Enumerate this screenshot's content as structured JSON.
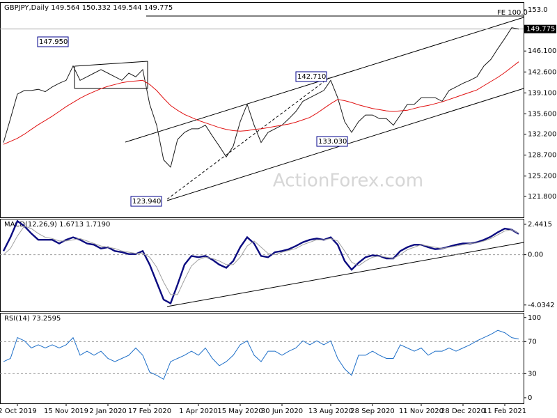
{
  "chart_data": [
    {
      "type": "line",
      "title": "GBPJPY,Daily",
      "ohlc": [
        149.564,
        150.332,
        149.544,
        149.775
      ],
      "ylim": [
        118.3,
        154.16
      ],
      "yticks": [
        {
          "value": 153,
          "label": "153.0"
        },
        {
          "value": 146.1,
          "label": "146.100"
        },
        {
          "value": 142.6,
          "label": "142.600"
        },
        {
          "value": 139.1,
          "label": "139.100"
        },
        {
          "value": 135.6,
          "label": "135.600"
        },
        {
          "value": 132.2,
          "label": "132.200"
        },
        {
          "value": 128.7,
          "label": "128.700"
        },
        {
          "value": 125.2,
          "label": "125.200"
        },
        {
          "value": 121.8,
          "label": "121.800"
        }
      ],
      "last_price": 149.775,
      "annotations": [
        "147.950",
        "142.710",
        "133.030",
        "123.940",
        "FE 100.0"
      ],
      "watermark": "ActionForex.com",
      "series": [
        {
          "color": "#1a1a1a",
          "values": [
            130.8,
            134.8,
            138.9,
            139.5,
            139.5,
            139.7,
            139.3,
            140.1,
            140.7,
            141.2,
            143.6,
            141.2,
            141.8,
            142.4,
            143.0,
            142.4,
            141.8,
            141.2,
            142.4,
            141.8,
            143.0,
            137.2,
            133.7,
            127.9,
            126.7,
            131.3,
            132.5,
            133.1,
            133.1,
            133.7,
            131.9,
            130.2,
            128.4,
            130.2,
            134.3,
            137.2,
            133.7,
            130.8,
            132.5,
            133.1,
            133.7,
            134.8,
            136.0,
            137.7,
            138.3,
            138.9,
            139.5,
            141.2,
            138.3,
            134.3,
            132.5,
            134.3,
            135.4,
            135.4,
            134.8,
            134.8,
            133.7,
            135.4,
            137.2,
            137.2,
            138.3,
            138.3,
            138.3,
            137.7,
            139.5,
            140.1,
            140.7,
            141.2,
            141.8,
            143.6,
            144.7,
            146.5,
            148.2,
            150.0,
            149.775
          ]
        },
        {
          "color": "#e01010",
          "values": [
            130.5,
            131.0,
            131.5,
            132.2,
            133.0,
            133.8,
            134.5,
            135.2,
            136.0,
            136.8,
            137.5,
            138.2,
            138.8,
            139.3,
            139.8,
            140.2,
            140.5,
            140.8,
            141.0,
            141.1,
            141.2,
            140.5,
            139.5,
            138.2,
            137.0,
            136.2,
            135.5,
            135.0,
            134.5,
            134.1,
            133.7,
            133.3,
            133.0,
            132.8,
            132.7,
            132.8,
            133.0,
            133.1,
            133.3,
            133.5,
            133.7,
            133.9,
            134.2,
            134.6,
            135.0,
            135.7,
            136.5,
            137.3,
            138.0,
            137.8,
            137.5,
            137.1,
            136.8,
            136.5,
            136.3,
            136.1,
            136.0,
            136.1,
            136.2,
            136.5,
            136.8,
            137.0,
            137.3,
            137.6,
            138.0,
            138.4,
            138.8,
            139.2,
            139.6,
            140.3,
            141.0,
            141.7,
            142.5,
            143.4,
            144.3
          ]
        }
      ]
    },
    {
      "type": "line",
      "title": "MACD(12,26,9)",
      "header_values": [
        1.6713,
        {
          "value": 1.719,
          "label": "1.7190"
        }
      ],
      "ylim": [
        -4.55,
        2.83
      ],
      "yticks": [
        2.4415,
        {
          "value": 0,
          "label": "0.00"
        },
        -4.0342
      ],
      "reference_lines": [
        0
      ],
      "series": [
        {
          "color": "#0b0b80",
          "width": 2.4,
          "values": [
            0.3,
            1.4,
            2.7,
            2.3,
            1.7,
            1.2,
            1.2,
            1.2,
            0.9,
            1.2,
            1.4,
            1.2,
            0.9,
            0.8,
            0.5,
            0.6,
            0.3,
            0.2,
            0.05,
            0.05,
            0.3,
            -0.8,
            -2.2,
            -3.6,
            -3.9,
            -2.4,
            -0.8,
            -0.1,
            -0.2,
            -0.1,
            -0.4,
            -0.8,
            -1.05,
            -0.5,
            0.6,
            1.4,
            0.9,
            -0.1,
            -0.2,
            0.2,
            0.3,
            0.45,
            0.7,
            1.0,
            1.2,
            1.3,
            1.2,
            1.4,
            0.8,
            -0.5,
            -1.2,
            -0.65,
            -0.2,
            -0.05,
            -0.1,
            -0.3,
            -0.3,
            0.3,
            0.6,
            0.8,
            0.8,
            0.6,
            0.45,
            0.5,
            0.65,
            0.8,
            0.9,
            0.9,
            1.0,
            1.2,
            1.45,
            1.8,
            2.1,
            2.0,
            1.6713
          ]
        },
        {
          "color": "#a0a0a0",
          "width": 1,
          "values": [
            0.0,
            0.5,
            1.5,
            2.3,
            2.1,
            1.7,
            1.4,
            1.3,
            1.1,
            1.1,
            1.2,
            1.3,
            1.1,
            0.9,
            0.7,
            0.6,
            0.5,
            0.3,
            0.2,
            0.1,
            0.1,
            -0.2,
            -1.0,
            -2.2,
            -3.2,
            -3.2,
            -2.0,
            -0.9,
            -0.4,
            -0.2,
            -0.3,
            -0.5,
            -0.8,
            -0.8,
            -0.2,
            0.7,
            1.1,
            0.6,
            0.1,
            0.0,
            0.2,
            0.35,
            0.5,
            0.8,
            1.0,
            1.2,
            1.2,
            1.3,
            1.1,
            0.3,
            -0.6,
            -0.9,
            -0.5,
            -0.2,
            -0.1,
            -0.2,
            -0.3,
            0.0,
            0.4,
            0.6,
            0.8,
            0.7,
            0.6,
            0.5,
            0.6,
            0.7,
            0.8,
            0.9,
            0.95,
            1.1,
            1.3,
            1.6,
            1.9,
            2.0,
            1.719
          ]
        }
      ]
    },
    {
      "type": "line",
      "title": "RSI(14)",
      "header_values": [
        73.2595
      ],
      "ylim": [
        -7,
        105
      ],
      "yticks": [
        100,
        70,
        30,
        0
      ],
      "reference_lines": [
        70,
        30
      ],
      "categories": [
        null,
        null,
        "2 Oct 2019",
        null,
        null,
        null,
        null,
        null,
        null,
        "15 Nov 2019",
        null,
        null,
        null,
        null,
        null,
        "2 Jan 2020",
        null,
        null,
        null,
        null,
        null,
        "17 Feb 2020",
        null,
        null,
        null,
        null,
        null,
        null,
        "1 Apr 2020",
        null,
        null,
        null,
        null,
        null,
        "15 May 2020",
        null,
        null,
        null,
        null,
        null,
        "30 Jun 2020",
        null,
        null,
        null,
        null,
        null,
        null,
        "13 Aug 2020",
        null,
        null,
        null,
        null,
        null,
        "28 Sep 2020",
        null,
        null,
        null,
        null,
        null,
        null,
        "11 Nov 2020",
        null,
        null,
        null,
        null,
        null,
        "28 Dec 2020",
        null,
        null,
        null,
        null,
        null,
        "11 Feb 2021",
        null,
        null
      ],
      "series": [
        {
          "color": "#1e6fc8",
          "width": 1,
          "values": [
            45,
            49,
            75,
            71,
            62,
            66,
            62,
            66,
            62,
            66,
            75,
            53,
            58,
            53,
            58,
            49,
            45,
            49,
            53,
            62,
            53,
            32,
            28,
            23,
            45,
            49,
            53,
            58,
            53,
            62,
            49,
            40,
            45,
            53,
            66,
            71,
            53,
            45,
            58,
            58,
            53,
            58,
            62,
            71,
            66,
            71,
            66,
            71,
            49,
            36,
            28,
            53,
            53,
            58,
            53,
            49,
            49,
            66,
            62,
            58,
            62,
            53,
            58,
            58,
            62,
            58,
            62,
            66,
            71,
            75,
            79,
            84,
            81,
            75,
            73.2595
          ]
        }
      ]
    }
  ]
}
